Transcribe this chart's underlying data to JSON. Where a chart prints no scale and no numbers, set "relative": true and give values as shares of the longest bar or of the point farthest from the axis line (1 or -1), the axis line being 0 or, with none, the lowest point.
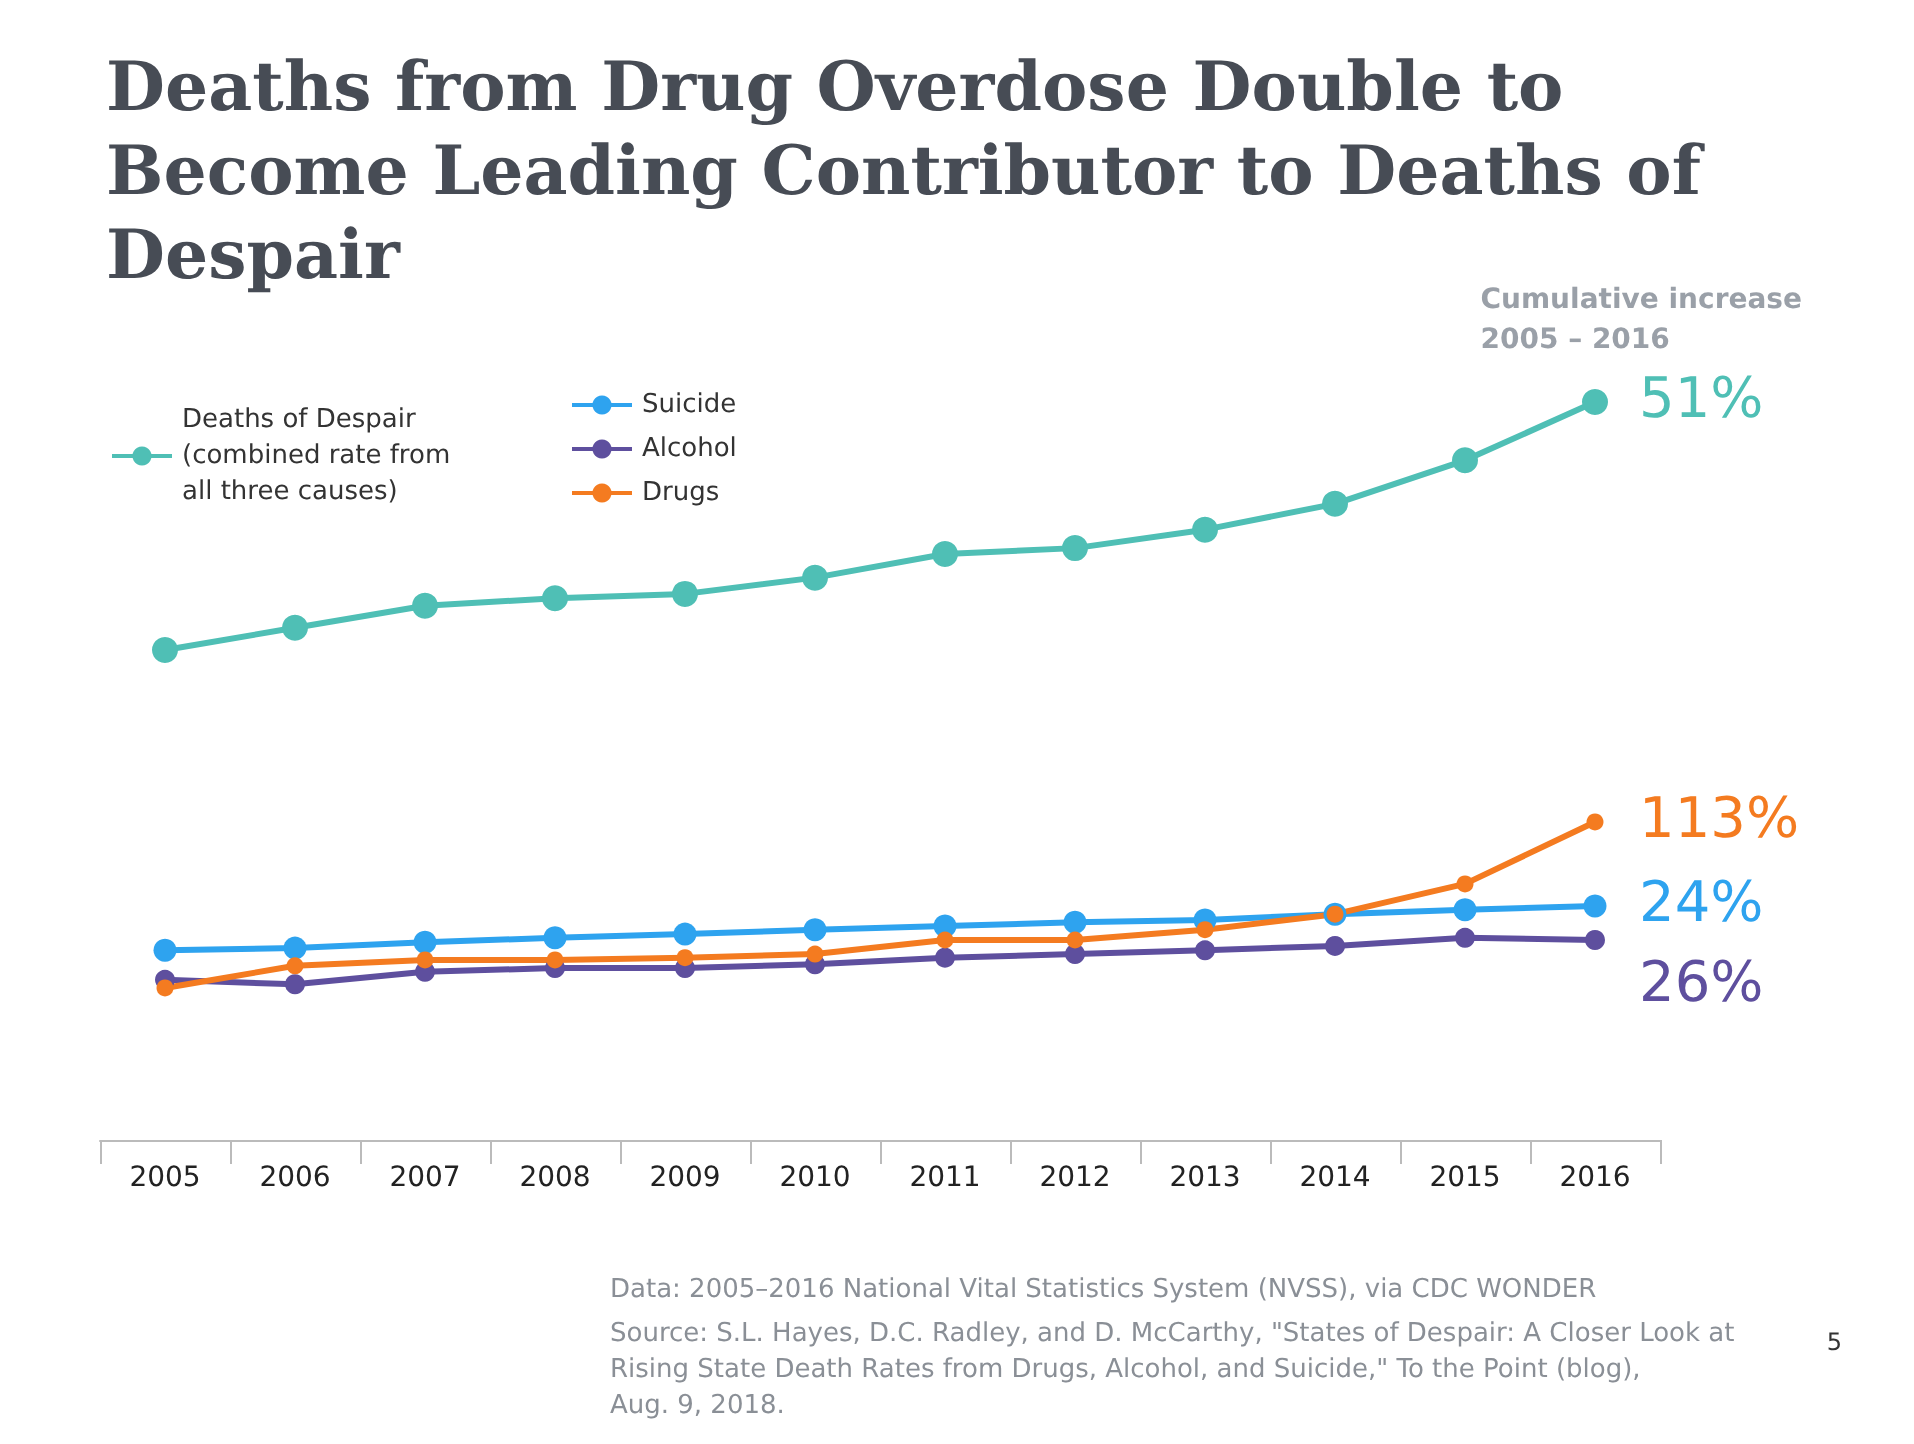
{
  "chart_data": {
    "type": "line",
    "title": "Deaths from Drug Overdose Double to Become Leading Contributor to Deaths of Despair",
    "relative": true,
    "marker": "circle",
    "line_style": "solid",
    "grid": false,
    "legend": "top left",
    "categories": [
      "2005",
      "2006",
      "2007",
      "2008",
      "2009",
      "2010",
      "2011",
      "2012",
      "2013",
      "2014",
      "2015",
      "2016"
    ],
    "series": [
      {
        "name": "Deaths of Despair (combined rate from all three causes)",
        "color": "#4fbfb5",
        "values": [
          0.664,
          0.694,
          0.724,
          0.734,
          0.74,
          0.762,
          0.794,
          0.802,
          0.827,
          0.862,
          0.921,
          1
        ]
      },
      {
        "name": "Suicide",
        "color": "#2ea3ef",
        "values": [
          0.257,
          0.26,
          0.268,
          0.274,
          0.279,
          0.285,
          0.29,
          0.295,
          0.298,
          0.306,
          0.312,
          0.317
        ]
      },
      {
        "name": "Alcohol",
        "color": "#5e4f9e",
        "values": [
          0.217,
          0.211,
          0.228,
          0.233,
          0.233,
          0.238,
          0.247,
          0.252,
          0.257,
          0.263,
          0.274,
          0.271
        ]
      },
      {
        "name": "Drugs",
        "color": "#f47b20",
        "values": [
          0.206,
          0.236,
          0.244,
          0.244,
          0.247,
          0.252,
          0.271,
          0.271,
          0.285,
          0.306,
          0.347,
          0.431
        ]
      }
    ],
    "annotations": [
      "Cumulative increase\n2005 – 2016",
      {
        "text": "51%",
        "x": "2016",
        "y": 1
      },
      {
        "text": "113%",
        "x": "2016",
        "y": 0.431
      },
      {
        "text": "24%",
        "x": "2016",
        "y": 0.317
      },
      {
        "text": "26%",
        "x": "2016",
        "y": 0.271
      },
      "Data: 2005–2016 National Vital Statistics System (NVSS), via CDC WONDER",
      "Source: S.L. Hayes, D.C. Radley, and D. McCarthy, \"States of Despair: A Closer Look at\nRising State Death Rates from Drugs, Alcohol, and Suicide,\" To the Point (blog),\nAug. 9, 2018.",
      "5"
    ]
  }
}
